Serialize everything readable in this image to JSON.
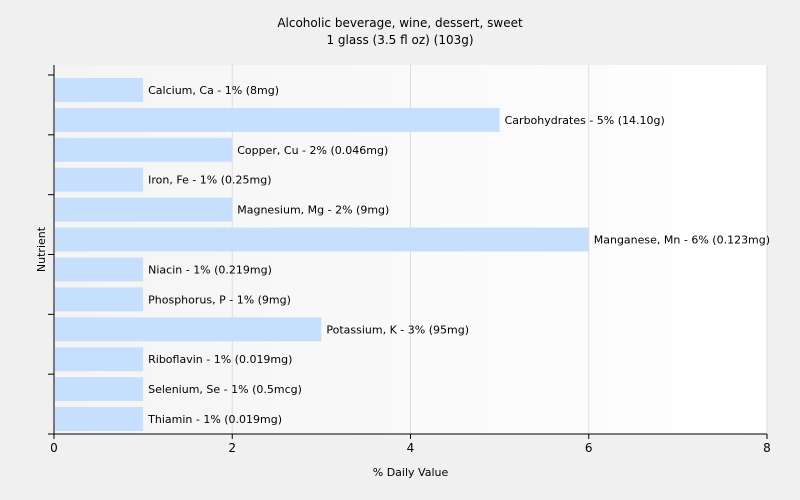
{
  "chart_data": {
    "type": "bar",
    "orientation": "horizontal",
    "title": "Alcoholic beverage, wine, dessert, sweet",
    "subtitle": "1 glass (3.5 fl oz) (103g)",
    "xlabel": "% Daily Value",
    "ylabel": "Nutrient",
    "xlim": [
      0,
      8
    ],
    "xticks": [
      0,
      2,
      4,
      6,
      8
    ],
    "grid": "vertical",
    "bar_color": "#c5dffd",
    "categories": [
      "Calcium, Ca",
      "Carbohydrates",
      "Copper, Cu",
      "Iron, Fe",
      "Magnesium, Mg",
      "Manganese, Mn",
      "Niacin",
      "Phosphorus, P",
      "Potassium, K",
      "Riboflavin",
      "Selenium, Se",
      "Thiamin"
    ],
    "values": [
      1,
      5,
      2,
      1,
      2,
      6,
      1,
      1,
      3,
      1,
      1,
      1
    ],
    "labels": [
      "Calcium, Ca - 1% (8mg)",
      "Carbohydrates - 5% (14.10g)",
      "Copper, Cu - 2% (0.046mg)",
      "Iron, Fe - 1% (0.25mg)",
      "Magnesium, Mg - 2% (9mg)",
      "Manganese, Mn - 6% (0.123mg)",
      "Niacin - 1% (0.219mg)",
      "Phosphorus, P - 1% (9mg)",
      "Potassium, K - 3% (95mg)",
      "Riboflavin - 1% (0.019mg)",
      "Selenium, Se - 1% (0.5mcg)",
      "Thiamin - 1% (0.019mg)"
    ]
  }
}
